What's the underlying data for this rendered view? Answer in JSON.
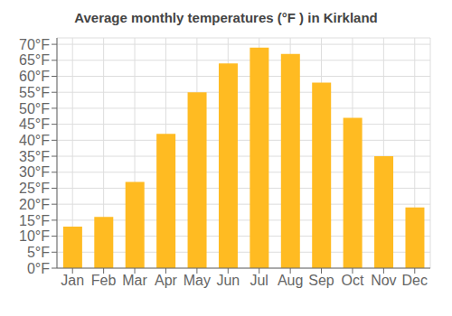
{
  "chart_data": {
    "type": "bar",
    "title": "Average monthly temperatures (°F ) in Kirkland",
    "categories": [
      "Jan",
      "Feb",
      "Mar",
      "Apr",
      "May",
      "Jun",
      "Jul",
      "Aug",
      "Sep",
      "Oct",
      "Nov",
      "Dec"
    ],
    "values": [
      13,
      16,
      27,
      42,
      55,
      64,
      69,
      67,
      58,
      47,
      35,
      19
    ],
    "color": "#FFBB22",
    "ylim": [
      0,
      72
    ],
    "yticks": [
      {
        "value": 0,
        "label": "0°F"
      },
      {
        "value": 5,
        "label": "5°F"
      },
      {
        "value": 10,
        "label": "10°F"
      },
      {
        "value": 15,
        "label": "15°F"
      },
      {
        "value": 20,
        "label": "20°F"
      },
      {
        "value": 25,
        "label": "25°F"
      },
      {
        "value": 30,
        "label": "30°F"
      },
      {
        "value": 35,
        "label": "35°F"
      },
      {
        "value": 40,
        "label": "40°F"
      },
      {
        "value": 45,
        "label": "45°F"
      },
      {
        "value": 50,
        "label": "50°F"
      },
      {
        "value": 55,
        "label": "55°F"
      },
      {
        "value": 60,
        "label": "60°F"
      },
      {
        "value": 65,
        "label": "65°F"
      },
      {
        "value": 70,
        "label": "70°F"
      }
    ],
    "grid": true
  }
}
